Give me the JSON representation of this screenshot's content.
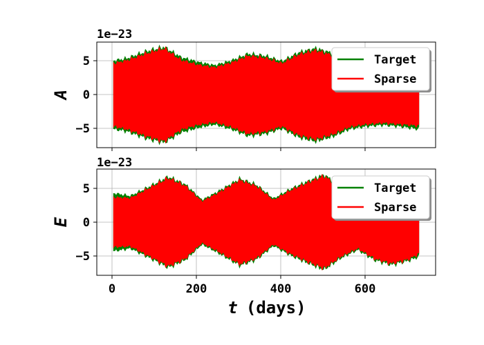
{
  "colors": {
    "target": "#008000",
    "sparse": "#ff0000"
  },
  "chart_data": [
    {
      "type": "line",
      "ylabel": "A",
      "xlabel": "",
      "offset_text": "1e−23",
      "xlim": [
        -40,
        765
      ],
      "ylim": [
        -7.8,
        7.8
      ],
      "xticks": [
        0,
        200,
        400,
        600
      ],
      "yticks": [
        -5,
        0,
        5
      ],
      "ytick_labels": [
        "−5",
        "0",
        "5"
      ],
      "grid": true,
      "legend_position": "upper right",
      "series": [
        {
          "name": "Target",
          "color": "#008000",
          "envelope_x": [
            0,
            30,
            80,
            120,
            160,
            200,
            240,
            280,
            320,
            360,
            400,
            440,
            480,
            520,
            560,
            600,
            640,
            680,
            725
          ],
          "envelope_y": [
            5.0,
            5.3,
            6.4,
            7.0,
            5.5,
            4.8,
            4.3,
            5.0,
            6.0,
            5.7,
            4.9,
            6.2,
            6.8,
            6.1,
            5.0,
            4.6,
            4.4,
            4.6,
            5.0
          ]
        },
        {
          "name": "Sparse",
          "color": "#ff0000",
          "envelope_x": [
            0,
            30,
            80,
            120,
            160,
            200,
            240,
            280,
            320,
            360,
            400,
            440,
            480,
            520,
            560,
            600,
            640,
            680,
            725
          ],
          "envelope_y": [
            4.6,
            5.0,
            6.1,
            6.8,
            5.1,
            4.4,
            4.0,
            4.7,
            5.7,
            5.4,
            4.6,
            5.9,
            6.5,
            5.8,
            4.7,
            4.3,
            4.1,
            4.3,
            4.5
          ]
        }
      ]
    },
    {
      "type": "line",
      "ylabel": "E",
      "xlabel": "t (days)",
      "xlabel_var": "t",
      "xlabel_unit": "(days)",
      "offset_text": "1e−23",
      "xlim": [
        -40,
        765
      ],
      "ylim": [
        -7.8,
        7.8
      ],
      "xticks": [
        0,
        200,
        400,
        600
      ],
      "xtick_labels": [
        "0",
        "200",
        "400",
        "600"
      ],
      "yticks": [
        -5,
        0,
        5
      ],
      "ytick_labels": [
        "−5",
        "0",
        "5"
      ],
      "grid": true,
      "legend_position": "upper right",
      "series": [
        {
          "name": "Target",
          "color": "#008000",
          "envelope_x": [
            0,
            40,
            80,
            130,
            170,
            210,
            250,
            300,
            340,
            380,
            420,
            460,
            500,
            540,
            580,
            620,
            660,
            700,
            725
          ],
          "envelope_y": [
            4.2,
            3.8,
            5.0,
            6.6,
            5.5,
            3.2,
            4.5,
            6.3,
            5.4,
            3.4,
            4.8,
            5.9,
            6.9,
            5.2,
            4.0,
            5.5,
            6.2,
            5.6,
            5.0
          ]
        },
        {
          "name": "Sparse",
          "color": "#ff0000",
          "envelope_x": [
            0,
            40,
            80,
            130,
            170,
            210,
            250,
            300,
            340,
            380,
            420,
            460,
            500,
            540,
            580,
            620,
            660,
            700,
            725
          ],
          "envelope_y": [
            3.6,
            3.5,
            4.8,
            6.4,
            5.3,
            3.0,
            4.3,
            6.1,
            5.2,
            3.2,
            4.6,
            5.7,
            6.7,
            5.0,
            3.8,
            5.3,
            6.0,
            5.4,
            4.6
          ]
        }
      ]
    }
  ],
  "legend": {
    "items": [
      {
        "label": "Target",
        "color": "#008000"
      },
      {
        "label": "Sparse",
        "color": "#ff0000"
      }
    ]
  }
}
